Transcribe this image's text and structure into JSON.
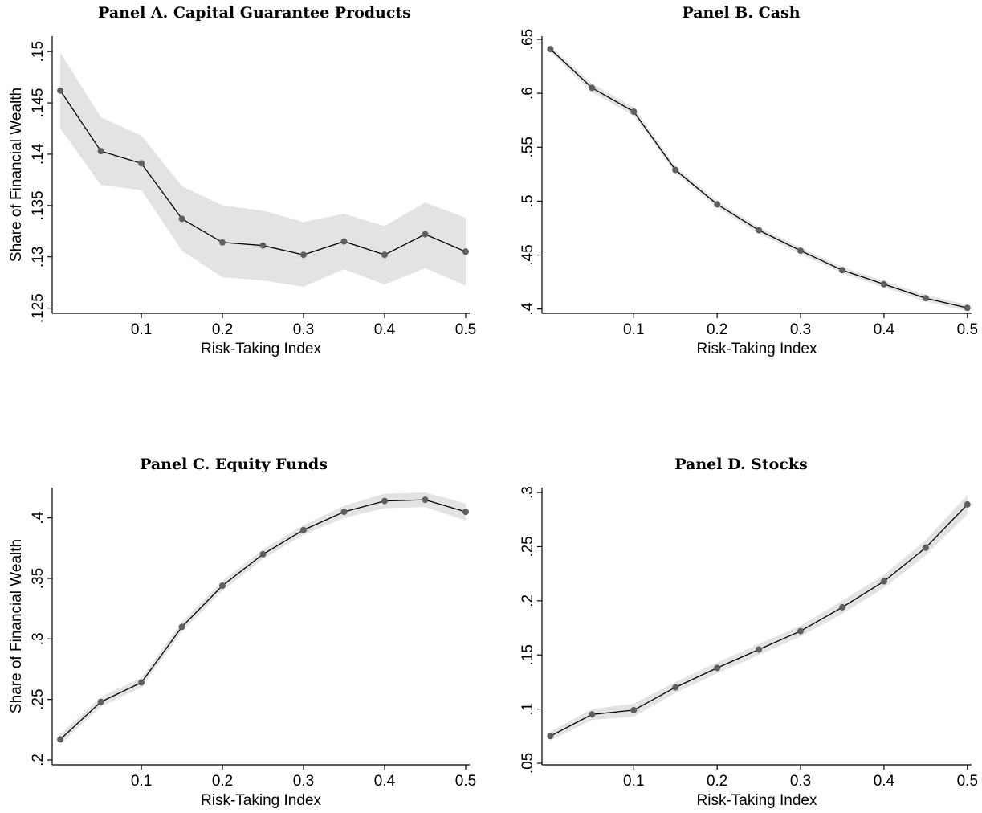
{
  "chart_data": [
    {
      "type": "line",
      "title": "Panel A. Capital Guarantee Products",
      "xlabel": "Risk-Taking Index",
      "ylabel": "Share of Financial Wealth",
      "x": [
        0,
        0.05,
        0.1,
        0.15,
        0.2,
        0.25,
        0.3,
        0.35,
        0.4,
        0.45,
        0.5
      ],
      "values": [
        0.1462,
        0.1403,
        0.1391,
        0.1337,
        0.1314,
        0.1311,
        0.1302,
        0.1315,
        0.1302,
        0.1322,
        0.1305
      ],
      "ci_lower": [
        0.1425,
        0.137,
        0.1365,
        0.1306,
        0.128,
        0.1277,
        0.1271,
        0.1288,
        0.1273,
        0.1289,
        0.1272
      ],
      "ci_upper": [
        0.1499,
        0.1436,
        0.1418,
        0.1369,
        0.135,
        0.1345,
        0.1334,
        0.1342,
        0.133,
        0.1353,
        0.1338
      ],
      "xlim": [
        -0.01,
        0.505
      ],
      "ylim": [
        0.1245,
        0.1515
      ],
      "xticks": [
        0.1,
        0.2,
        0.3,
        0.4,
        0.5
      ],
      "xtick_labels": [
        "0.1",
        "0.2",
        "0.3",
        "0.4",
        "0.5"
      ],
      "yticks": [
        0.125,
        0.13,
        0.135,
        0.14,
        0.145,
        0.15
      ],
      "ytick_labels": [
        ".125",
        ".13",
        ".135",
        ".14",
        ".145",
        ".15"
      ],
      "grid": false
    },
    {
      "type": "line",
      "title": "Panel B. Cash",
      "xlabel": "Risk-Taking Index",
      "ylabel": "",
      "x": [
        0,
        0.05,
        0.1,
        0.15,
        0.2,
        0.25,
        0.3,
        0.35,
        0.4,
        0.45,
        0.5
      ],
      "values": [
        0.641,
        0.605,
        0.583,
        0.529,
        0.497,
        0.473,
        0.454,
        0.436,
        0.423,
        0.41,
        0.401
      ],
      "ci_lower": [
        0.638,
        0.601,
        0.579,
        0.526,
        0.494,
        0.47,
        0.451,
        0.433,
        0.42,
        0.407,
        0.398
      ],
      "ci_upper": [
        0.644,
        0.609,
        0.587,
        0.532,
        0.5,
        0.476,
        0.457,
        0.439,
        0.426,
        0.413,
        0.404
      ],
      "xlim": [
        -0.01,
        0.505
      ],
      "ylim": [
        0.396,
        0.653
      ],
      "xticks": [
        0.1,
        0.2,
        0.3,
        0.4,
        0.5
      ],
      "xtick_labels": [
        "0.1",
        "0.2",
        "0.3",
        "0.4",
        "0.5"
      ],
      "yticks": [
        0.4,
        0.45,
        0.5,
        0.55,
        0.6,
        0.65
      ],
      "ytick_labels": [
        ".4",
        ".45",
        ".5",
        ".55",
        ".6",
        ".65"
      ],
      "grid": false
    },
    {
      "type": "line",
      "title": "Panel C. Equity Funds",
      "xlabel": "Risk-Taking Index",
      "ylabel": "Share of Financial Wealth",
      "x": [
        0,
        0.05,
        0.1,
        0.15,
        0.2,
        0.25,
        0.3,
        0.35,
        0.4,
        0.45,
        0.5
      ],
      "values": [
        0.217,
        0.248,
        0.264,
        0.31,
        0.344,
        0.37,
        0.39,
        0.405,
        0.414,
        0.415,
        0.405
      ],
      "ci_lower": [
        0.213,
        0.244,
        0.26,
        0.306,
        0.34,
        0.366,
        0.386,
        0.4,
        0.408,
        0.409,
        0.398
      ],
      "ci_upper": [
        0.221,
        0.252,
        0.268,
        0.314,
        0.348,
        0.374,
        0.394,
        0.41,
        0.42,
        0.421,
        0.412
      ],
      "xlim": [
        -0.01,
        0.505
      ],
      "ylim": [
        0.196,
        0.425
      ],
      "xticks": [
        0.1,
        0.2,
        0.3,
        0.4,
        0.5
      ],
      "xtick_labels": [
        "0.1",
        "0.2",
        "0.3",
        "0.4",
        "0.5"
      ],
      "yticks": [
        0.2,
        0.25,
        0.3,
        0.35,
        0.4
      ],
      "ytick_labels": [
        ".2",
        ".25",
        ".3",
        ".35",
        ".4"
      ],
      "grid": false
    },
    {
      "type": "line",
      "title": "Panel D. Stocks",
      "xlabel": "Risk-Taking Index",
      "ylabel": "",
      "x": [
        0,
        0.05,
        0.1,
        0.15,
        0.2,
        0.25,
        0.3,
        0.35,
        0.4,
        0.45,
        0.5
      ],
      "values": [
        0.075,
        0.095,
        0.099,
        0.12,
        0.138,
        0.155,
        0.172,
        0.194,
        0.218,
        0.249,
        0.289
      ],
      "ci_lower": [
        0.071,
        0.09,
        0.093,
        0.115,
        0.133,
        0.15,
        0.167,
        0.188,
        0.212,
        0.242,
        0.28
      ],
      "ci_upper": [
        0.079,
        0.1,
        0.105,
        0.125,
        0.143,
        0.16,
        0.177,
        0.2,
        0.224,
        0.256,
        0.298
      ],
      "xlim": [
        -0.01,
        0.505
      ],
      "ylim": [
        0.0485,
        0.3045
      ],
      "xticks": [
        0.1,
        0.2,
        0.3,
        0.4,
        0.5
      ],
      "xtick_labels": [
        "0.1",
        "0.2",
        "0.3",
        "0.4",
        "0.5"
      ],
      "yticks": [
        0.05,
        0.1,
        0.15,
        0.2,
        0.25,
        0.3
      ],
      "ytick_labels": [
        ".05",
        ".1",
        ".15",
        ".2",
        ".25",
        ".3"
      ],
      "grid": false
    }
  ],
  "style": {
    "line_color": "#000000",
    "marker_color": "#5f5f5f",
    "ci_band_color": "#e3e3e3"
  }
}
